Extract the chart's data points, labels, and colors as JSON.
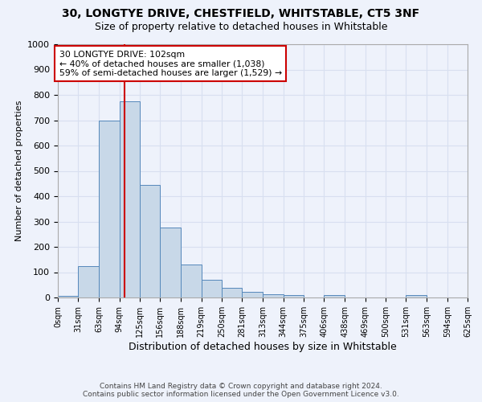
{
  "title1": "30, LONGTYE DRIVE, CHESTFIELD, WHITSTABLE, CT5 3NF",
  "title2": "Size of property relative to detached houses in Whitstable",
  "xlabel": "Distribution of detached houses by size in Whitstable",
  "ylabel": "Number of detached properties",
  "bar_heights": [
    5,
    125,
    700,
    775,
    445,
    275,
    130,
    70,
    38,
    22,
    12,
    8,
    0,
    8,
    0,
    0,
    0,
    8,
    0,
    0
  ],
  "bin_edges": [
    0,
    31,
    63,
    94,
    125,
    156,
    188,
    219,
    250,
    281,
    313,
    344,
    375,
    406,
    438,
    469,
    500,
    531,
    563,
    594,
    625
  ],
  "bin_labels": [
    "0sqm",
    "31sqm",
    "63sqm",
    "94sqm",
    "125sqm",
    "156sqm",
    "188sqm",
    "219sqm",
    "250sqm",
    "281sqm",
    "313sqm",
    "344sqm",
    "375sqm",
    "406sqm",
    "438sqm",
    "469sqm",
    "500sqm",
    "531sqm",
    "563sqm",
    "594sqm",
    "625sqm"
  ],
  "bar_color": "#c8d8e8",
  "bar_edge_color": "#5588bb",
  "property_size": 102,
  "property_label": "30 LONGTYE DRIVE: 102sqm",
  "annotation_line1": "← 40% of detached houses are smaller (1,038)",
  "annotation_line2": "59% of semi-detached houses are larger (1,529) →",
  "vline_color": "#cc0000",
  "annotation_box_color": "#ffffff",
  "annotation_box_edge": "#cc0000",
  "grid_color": "#d8dff0",
  "background_color": "#eef2fb",
  "footer1": "Contains HM Land Registry data © Crown copyright and database right 2024.",
  "footer2": "Contains public sector information licensed under the Open Government Licence v3.0.",
  "ylim": [
    0,
    1000
  ],
  "yticks": [
    0,
    100,
    200,
    300,
    400,
    500,
    600,
    700,
    800,
    900,
    1000
  ]
}
